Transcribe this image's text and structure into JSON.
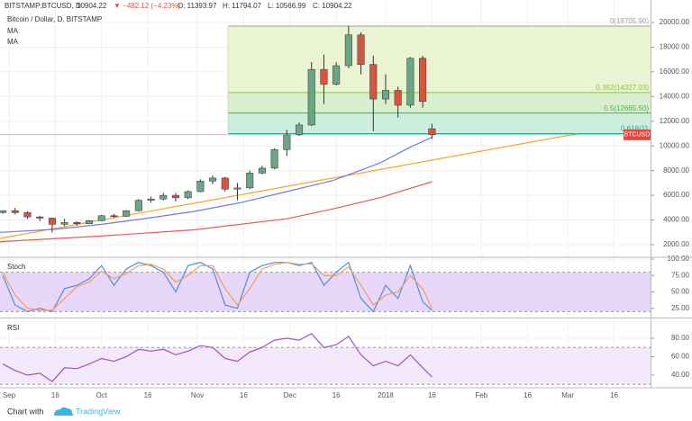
{
  "header": {
    "symbol": "BITSTAMP:BTCUSD, D",
    "last": "10904.22",
    "change": "▼ −482.12 (−4.23%)",
    "open": "O: 11393.97",
    "high": "H: 11794.07",
    "low": "L: 10566.99",
    "close": "C: 10904.22"
  },
  "footer": {
    "text": "Chart with",
    "brand": "TradingView"
  },
  "chart_data": [
    {
      "type": "candlestick",
      "title": "Bitcoin / Dollar, D, BITSTAMP",
      "x": [
        -2,
        2,
        6,
        10,
        14,
        18,
        22,
        26,
        30,
        34,
        38,
        42,
        46,
        50,
        54,
        58,
        62,
        66,
        70,
        74,
        78,
        82,
        86,
        90,
        94,
        98,
        102,
        106,
        110,
        114,
        118,
        122,
        126,
        130,
        134,
        137
      ],
      "open": [
        4600,
        4750,
        4600,
        4250,
        4150,
        3650,
        3800,
        3700,
        3950,
        4350,
        4300,
        4750,
        5600,
        5700,
        6000,
        5800,
        6300,
        7150,
        7400,
        6500,
        6600,
        7800,
        8200,
        9700,
        10900,
        11700,
        16200,
        15000,
        16500,
        19000,
        16600,
        13800,
        14500,
        13300,
        17100,
        11393.97
      ],
      "high": [
        4800,
        4980,
        4700,
        4350,
        4200,
        4100,
        3900,
        4000,
        4400,
        4500,
        4800,
        5700,
        5900,
        6200,
        6200,
        6400,
        7300,
        7600,
        7500,
        7000,
        8000,
        8400,
        9800,
        11300,
        11900,
        16800,
        17400,
        16800,
        19700,
        19200,
        17300,
        15800,
        14800,
        17200,
        17300,
        11794.07
      ],
      "low": [
        4500,
        4450,
        4100,
        3900,
        2980,
        3500,
        3550,
        3650,
        3900,
        4150,
        4250,
        4700,
        5400,
        5600,
        5500,
        5700,
        6250,
        6900,
        6300,
        5600,
        6500,
        7700,
        8100,
        9200,
        10800,
        11600,
        13400,
        14900,
        16300,
        15800,
        11200,
        13400,
        12300,
        13100,
        13100,
        10566.99
      ],
      "close": [
        4750,
        4600,
        4250,
        4150,
        3650,
        3800,
        3700,
        3950,
        4350,
        4300,
        4750,
        5600,
        5700,
        6000,
        5800,
        6300,
        7150,
        7400,
        6500,
        6600,
        7800,
        8200,
        9700,
        10900,
        11700,
        16200,
        15000,
        16500,
        19000,
        16600,
        13800,
        14500,
        13300,
        17100,
        13600,
        10904.22
      ],
      "up_color": "#6ba583",
      "down_color": "#d75442",
      "series": [
        {
          "name": "MA",
          "color": "#6e7be8",
          "x": [
            -2.9,
            15,
            30,
            45,
            60,
            75,
            90,
            105,
            120,
            130,
            137
          ],
          "values": [
            3000,
            3250,
            3650,
            4150,
            4700,
            5400,
            6300,
            7200,
            8600,
            9900,
            10700
          ]
        },
        {
          "name": "MA",
          "color": "#ea5a52",
          "x": [
            -2.9,
            30,
            60,
            90,
            105,
            120,
            137
          ],
          "values": [
            2250,
            2700,
            3200,
            4100,
            4900,
            5800,
            7100
          ]
        }
      ],
      "trendline": {
        "color": "#f5a623",
        "x": [
          -2.9,
          183.9
        ],
        "values": [
          2510,
          10980
        ]
      },
      "last_price": {
        "value": 10904.22,
        "label": "BTCUSD",
        "color": "#e8453c"
      },
      "fib": {
        "x_start": 71,
        "levels": [
          {
            "value": 19705.9,
            "label": "0(19705.90)",
            "color": "#9e9e9e",
            "fill": "#eaf4d3"
          },
          {
            "value": 14327.03,
            "label": "0.382(14327.03)",
            "color": "#8bc34a",
            "fill": "#d9f0cf"
          },
          {
            "value": 12665.5,
            "label": "0.5(12665.50)",
            "color": "#4caf50",
            "fill": "#cdeedd"
          },
          {
            "value": 11004,
            "label": "0.618(11",
            "color": "#26a69a"
          }
        ]
      },
      "xlim": [
        -2.9,
        207.8
      ],
      "ylim": [
        1053,
        21822
      ],
      "yticks": [
        {
          "value": 2000,
          "label": "2000.00"
        },
        {
          "value": 4000,
          "label": "4000.00"
        },
        {
          "value": 6000,
          "label": "6000.00"
        },
        {
          "value": 8000,
          "label": "8000.00"
        },
        {
          "value": 10000,
          "label": "10000.00"
        },
        {
          "value": 12000,
          "label": "12000.00"
        },
        {
          "value": 14000,
          "label": "14000.00"
        },
        {
          "value": 16000,
          "label": "16000.00"
        },
        {
          "value": 18000,
          "label": "18000.00"
        },
        {
          "value": 20000,
          "label": "20000.00"
        }
      ]
    },
    {
      "type": "line",
      "title": "Stoch",
      "x": [
        -2,
        2,
        6,
        10,
        14,
        18,
        22,
        26,
        30,
        34,
        38,
        42,
        46,
        50,
        54,
        58,
        62,
        66,
        70,
        74,
        78,
        82,
        86,
        90,
        94,
        98,
        102,
        106,
        110,
        114,
        118,
        122,
        126,
        130,
        134,
        137
      ],
      "series": [
        {
          "name": "%K",
          "color": "#4a90e2",
          "values": [
            75,
            30,
            20,
            25,
            20,
            55,
            60,
            70,
            90,
            60,
            85,
            95,
            90,
            80,
            50,
            90,
            95,
            85,
            30,
            25,
            80,
            90,
            95,
            95,
            90,
            95,
            60,
            80,
            95,
            40,
            20,
            60,
            40,
            90,
            35,
            22
          ]
        },
        {
          "name": "%D",
          "color": "#f39c5a",
          "values": [
            80,
            45,
            25,
            22,
            22,
            40,
            58,
            65,
            82,
            70,
            78,
            90,
            92,
            85,
            65,
            75,
            90,
            90,
            55,
            30,
            55,
            85,
            92,
            95,
            92,
            93,
            75,
            75,
            88,
            60,
            30,
            45,
            50,
            75,
            55,
            25
          ]
        }
      ],
      "band": [
        20,
        80
      ],
      "band_color": "#e3cdf7",
      "xlim": [
        -2.9,
        207.8
      ],
      "ylim": [
        12.3,
        101.4
      ],
      "yticks": [
        {
          "value": 25,
          "label": "25.00"
        },
        {
          "value": 50,
          "label": "50.00"
        },
        {
          "value": 75,
          "label": "75.00"
        },
        {
          "value": 100,
          "label": "100.00"
        }
      ]
    },
    {
      "type": "line",
      "title": "RSI",
      "x": [
        -2,
        2,
        6,
        10,
        14,
        18,
        22,
        26,
        30,
        34,
        38,
        42,
        46,
        50,
        54,
        58,
        62,
        66,
        70,
        74,
        78,
        82,
        86,
        90,
        94,
        98,
        102,
        106,
        110,
        114,
        118,
        122,
        126,
        130,
        134,
        137
      ],
      "series": [
        {
          "name": "RSI",
          "color": "#a050c8",
          "values": [
            52,
            45,
            40,
            42,
            33,
            48,
            47,
            52,
            58,
            55,
            60,
            68,
            66,
            68,
            62,
            66,
            72,
            70,
            58,
            55,
            65,
            70,
            78,
            80,
            78,
            85,
            70,
            73,
            82,
            62,
            50,
            55,
            50,
            62,
            48,
            38
          ]
        }
      ],
      "band": [
        30,
        70
      ],
      "band_color": "#f1e3fa",
      "xlim": [
        -2.9,
        207.8
      ],
      "ylim": [
        27.3,
        100.5
      ],
      "yticks": [
        {
          "value": 40,
          "label": "40.00"
        },
        {
          "value": 60,
          "label": "60.00"
        },
        {
          "value": 80,
          "label": "80.00"
        }
      ],
      "xticks": [
        {
          "value": 0,
          "label": "Sep"
        },
        {
          "value": 15,
          "label": "16"
        },
        {
          "value": 30,
          "label": "Oct"
        },
        {
          "value": 45,
          "label": "16"
        },
        {
          "value": 61,
          "label": "Nov"
        },
        {
          "value": 76,
          "label": "16"
        },
        {
          "value": 91,
          "label": "Dec"
        },
        {
          "value": 106,
          "label": "16"
        },
        {
          "value": 122,
          "label": "2018"
        },
        {
          "value": 137,
          "label": "16"
        },
        {
          "value": 153,
          "label": "Feb"
        },
        {
          "value": 168,
          "label": "16"
        },
        {
          "value": 181,
          "label": "Mar"
        },
        {
          "value": 196,
          "label": "16"
        }
      ]
    }
  ]
}
